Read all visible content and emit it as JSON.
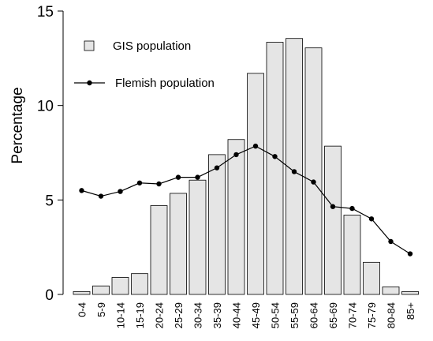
{
  "chart_data": {
    "type": "bar",
    "ylabel": "Percentage",
    "xlabel": "",
    "ylim": [
      0,
      15
    ],
    "yticks": [
      "0",
      "5",
      "10",
      "15"
    ],
    "grid": false,
    "legend_position": "top-left",
    "categories": [
      "0-4",
      "5-9",
      "10-14",
      "15-19",
      "20-24",
      "25-29",
      "30-34",
      "35-39",
      "40-44",
      "45-49",
      "50-54",
      "55-59",
      "60-64",
      "65-69",
      "70-74",
      "75-79",
      "80-84",
      "85+"
    ],
    "series": [
      {
        "name": "GIS population",
        "kind": "bar",
        "color": "#e5e5e5",
        "values": [
          0.15,
          0.45,
          0.9,
          1.1,
          4.7,
          5.35,
          6.05,
          7.4,
          8.2,
          11.7,
          13.35,
          13.55,
          13.05,
          7.85,
          4.2,
          1.7,
          0.4,
          0.15
        ]
      },
      {
        "name": "Flemish population",
        "kind": "line",
        "color": "#000000",
        "values": [
          5.5,
          5.2,
          5.45,
          5.9,
          5.85,
          6.2,
          6.2,
          6.7,
          7.4,
          7.85,
          7.3,
          6.5,
          5.95,
          4.65,
          4.55,
          4.0,
          2.8,
          2.15
        ]
      }
    ]
  }
}
